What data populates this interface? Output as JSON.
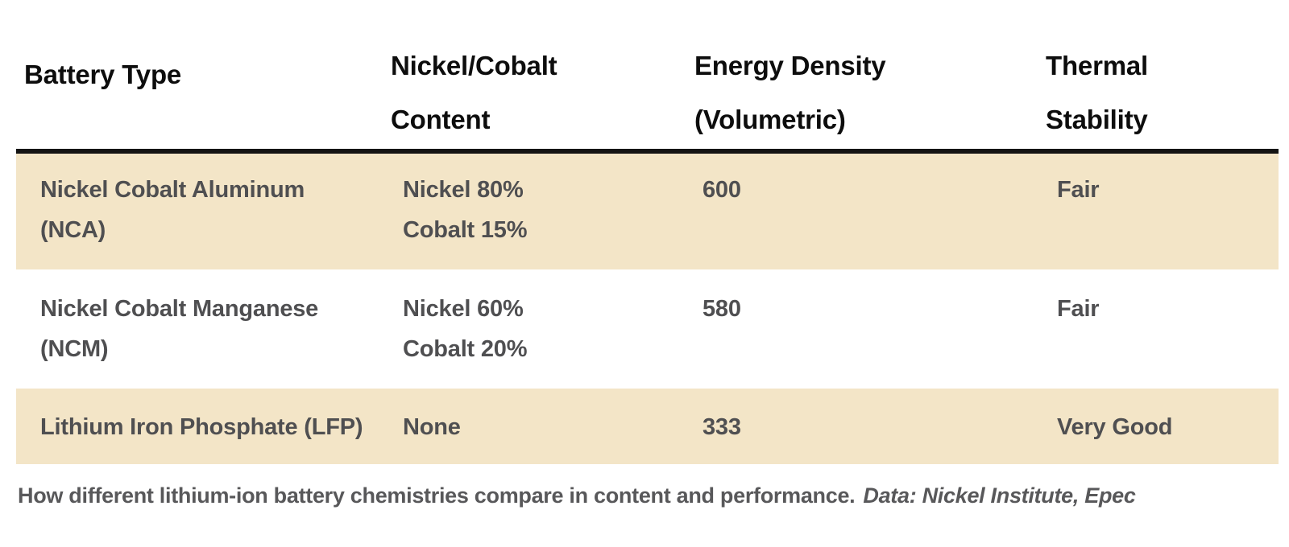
{
  "chart_data": {
    "type": "table",
    "columns": [
      "Battery Type",
      "Nickel/Cobalt Content",
      "Energy Density (Volumetric)",
      "Thermal Stability"
    ],
    "rows": [
      {
        "battery_type": "Nickel Cobalt Aluminum (NCA)",
        "nickel_cobalt_content": "Nickel 80% Cobalt 15%",
        "energy_density_volumetric": "600",
        "thermal_stability": "Fair",
        "highlighted": true
      },
      {
        "battery_type": "Nickel Cobalt Manganese (NCM)",
        "nickel_cobalt_content": "Nickel 60% Cobalt 20%",
        "energy_density_volumetric": "580",
        "thermal_stability": "Fair",
        "highlighted": false
      },
      {
        "battery_type": "Lithium Iron Phosphate (LFP)",
        "nickel_cobalt_content": "None",
        "energy_density_volumetric": "333",
        "thermal_stability": "Very Good",
        "highlighted": true
      }
    ],
    "caption": "How different lithium-ion battery chemistries compare in content and performance.",
    "caption_source": "Data: Nickel Institute, Epec"
  },
  "header": {
    "col1": {
      "line1": "Battery Type"
    },
    "col2": {
      "line1": "Nickel/Cobalt",
      "line2": "Content"
    },
    "col3": {
      "line1": "Energy Density",
      "line2": "(Volumetric)"
    },
    "col4": {
      "line1": "Thermal",
      "line2": "Stability"
    }
  },
  "rows": {
    "r1": {
      "name1": "Nickel Cobalt Aluminum",
      "name2": "(NCA)",
      "content1": "Nickel 80%",
      "content2": "Cobalt 15%",
      "energy": "600",
      "thermal": "Fair"
    },
    "r2": {
      "name1": "Nickel Cobalt Manganese",
      "name2": "(NCM)",
      "content1": "Nickel 60%",
      "content2": "Cobalt 20%",
      "energy": "580",
      "thermal": "Fair"
    },
    "r3": {
      "name1": "Lithium Iron Phosphate (LFP)",
      "content1": "None",
      "energy": "333",
      "thermal": "Very Good"
    }
  },
  "caption": {
    "text": "How different lithium-ion battery chemistries compare in content and performance.",
    "source": "Data: Nickel Institute, Epec"
  },
  "colors": {
    "row_highlight": "#F3E5C7",
    "header_text": "#0D0D0D",
    "body_text": "#4F4F51",
    "caption_text": "#58585A",
    "divider": "#141414",
    "background": "#FFFFFF"
  }
}
